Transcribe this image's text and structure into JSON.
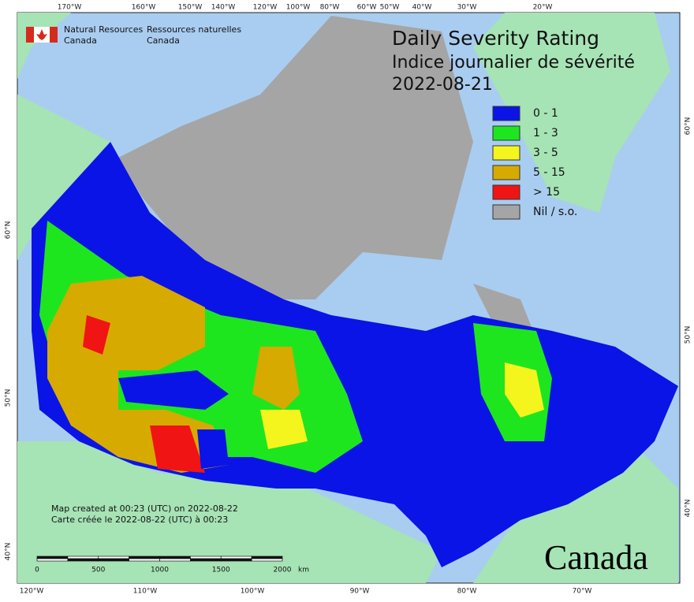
{
  "header": {
    "title": "Daily Severity Rating",
    "subtitle": "Indice journalier de sévérité",
    "date": "2022-08-21"
  },
  "legend": {
    "items": [
      {
        "label": "0 - 1",
        "color": "#0a14e6"
      },
      {
        "label": "1 - 3",
        "color": "#1ee61e"
      },
      {
        "label": "3 - 5",
        "color": "#f5f51e"
      },
      {
        "label": "5 - 15",
        "color": "#d7aa00"
      },
      {
        "label": "> 15",
        "color": "#f01414"
      },
      {
        "label": "Nil / s.o.",
        "color": "#a5a5a5"
      }
    ]
  },
  "agency": {
    "en": [
      "Natural Resources",
      "Canada"
    ],
    "fr": [
      "Ressources naturelles",
      "Canada"
    ]
  },
  "graticule": {
    "top": [
      "170°W",
      "160°W",
      "150°W",
      "140°W",
      "120°W",
      "100°W",
      "80°W",
      "60°W",
      "50°W",
      "40°W",
      "30°W",
      "20°W"
    ],
    "bottom": [
      "120°W",
      "110°W",
      "100°W",
      "90°W",
      "80°W",
      "70°W"
    ],
    "left": [
      "60°N",
      "50°N",
      "40°N"
    ],
    "right": [
      "60°N",
      "50°N",
      "40°N"
    ]
  },
  "notes": [
    "Map created at 00:23 (UTC) on 2022-08-22",
    "Carte créée le 2022-08-22 (UTC) à 00:23"
  ],
  "scale": {
    "ticks": [
      0,
      500,
      1000,
      1500,
      2000
    ],
    "unit": "km"
  },
  "wordmark": "Canada"
}
